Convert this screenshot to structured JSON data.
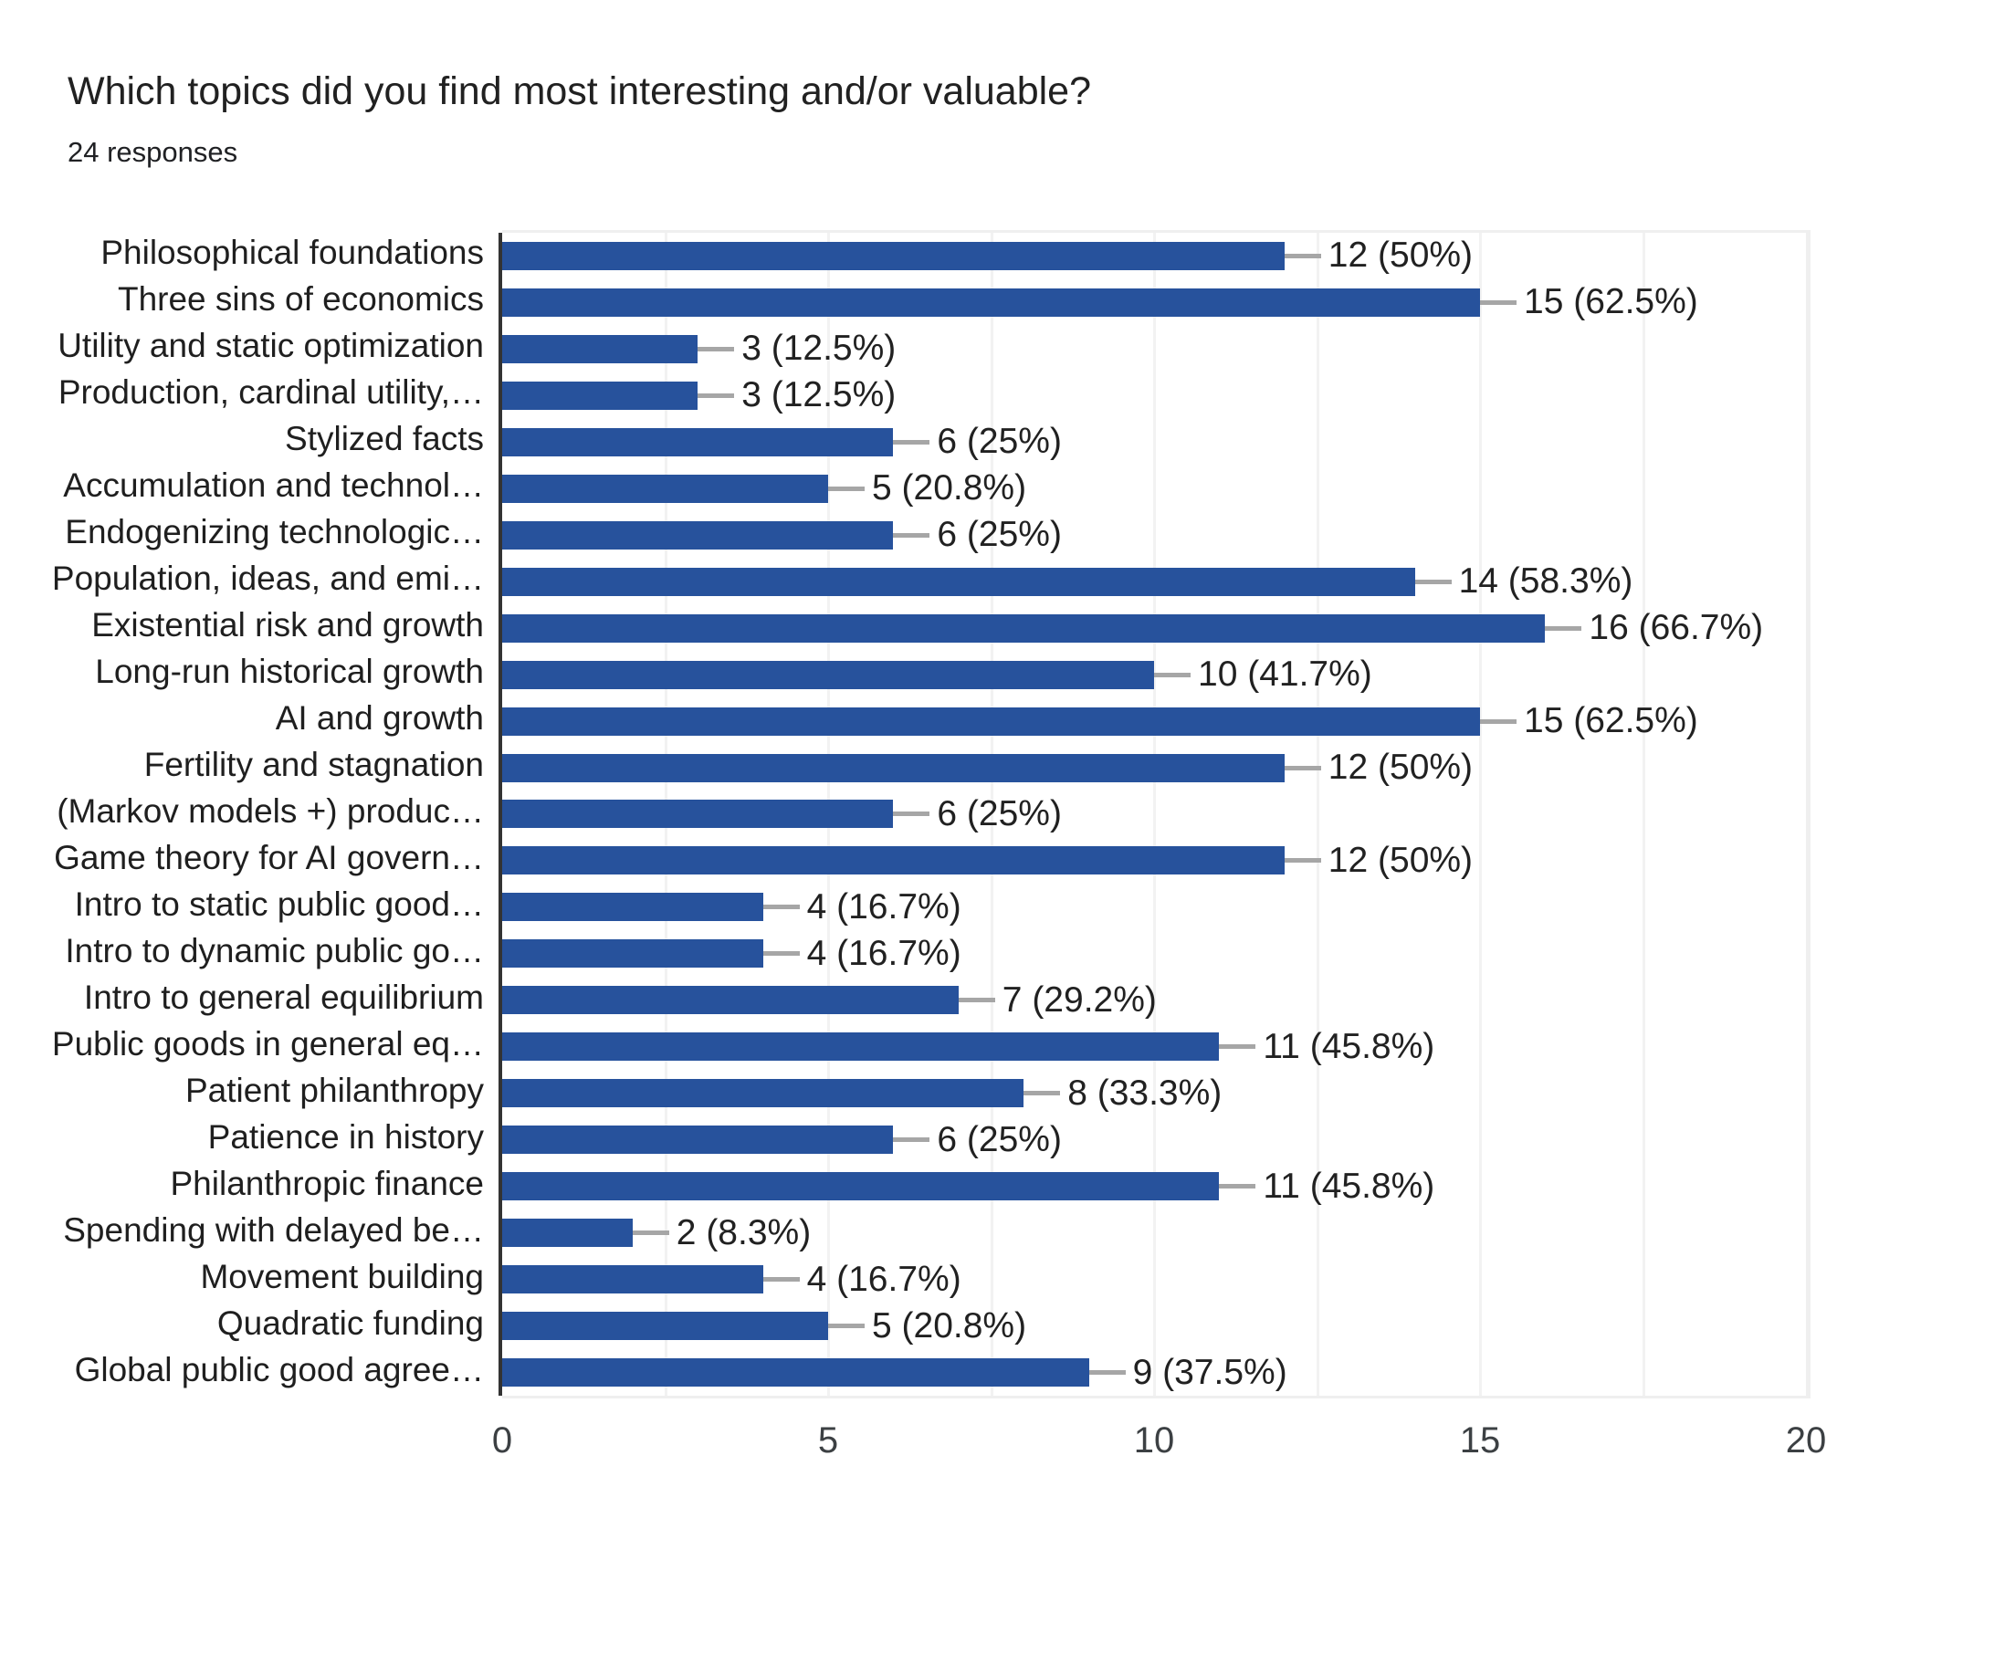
{
  "title": "Which topics did you find most interesting and/or valuable?",
  "subtitle": "24 responses",
  "chart_data": {
    "type": "bar",
    "orientation": "horizontal",
    "title": "Which topics did you find most interesting and/or valuable?",
    "subtitle": "24 responses",
    "categories": [
      "Philosophical foundations",
      "Three sins of economics",
      "Utility and static optimization",
      "Production, cardinal utility,…",
      "Stylized facts",
      "Accumulation and technol…",
      "Endogenizing technologic…",
      "Population, ideas, and emi…",
      "Existential risk and growth",
      "Long-run historical growth",
      "AI and growth",
      "Fertility and stagnation",
      "(Markov models +) produc…",
      "Game theory for AI govern…",
      "Intro to static public good…",
      "Intro to dynamic public go…",
      "Intro to general equilibrium",
      "Public goods in general eq…",
      "Patient philanthropy",
      "Patience in history",
      "Philanthropic finance",
      "Spending with delayed be…",
      "Movement building",
      "Quadratic funding",
      "Global public good agree…"
    ],
    "values": [
      12,
      15,
      3,
      3,
      6,
      5,
      6,
      14,
      16,
      10,
      15,
      12,
      6,
      12,
      4,
      4,
      7,
      11,
      8,
      6,
      11,
      2,
      4,
      5,
      9
    ],
    "percents": [
      "50%",
      "62.5%",
      "12.5%",
      "12.5%",
      "25%",
      "20.8%",
      "25%",
      "58.3%",
      "66.7%",
      "41.7%",
      "62.5%",
      "50%",
      "25%",
      "50%",
      "16.7%",
      "16.7%",
      "29.2%",
      "45.8%",
      "33.3%",
      "25%",
      "45.8%",
      "8.3%",
      "16.7%",
      "20.8%",
      "37.5%"
    ],
    "x_ticks": [
      0,
      5,
      10,
      15,
      20
    ],
    "xlim": [
      0,
      20
    ],
    "grid_step": 2.5,
    "xlabel": "",
    "ylabel": "",
    "legend": "none",
    "grid": "vertical-light",
    "colors": {
      "bar": "#27529C",
      "axis_line": "#333333",
      "gridline": "#f2f2f2",
      "leader_line": "#a6a6a6",
      "label_text": "#212121",
      "tick_text": "#3c4043"
    }
  }
}
